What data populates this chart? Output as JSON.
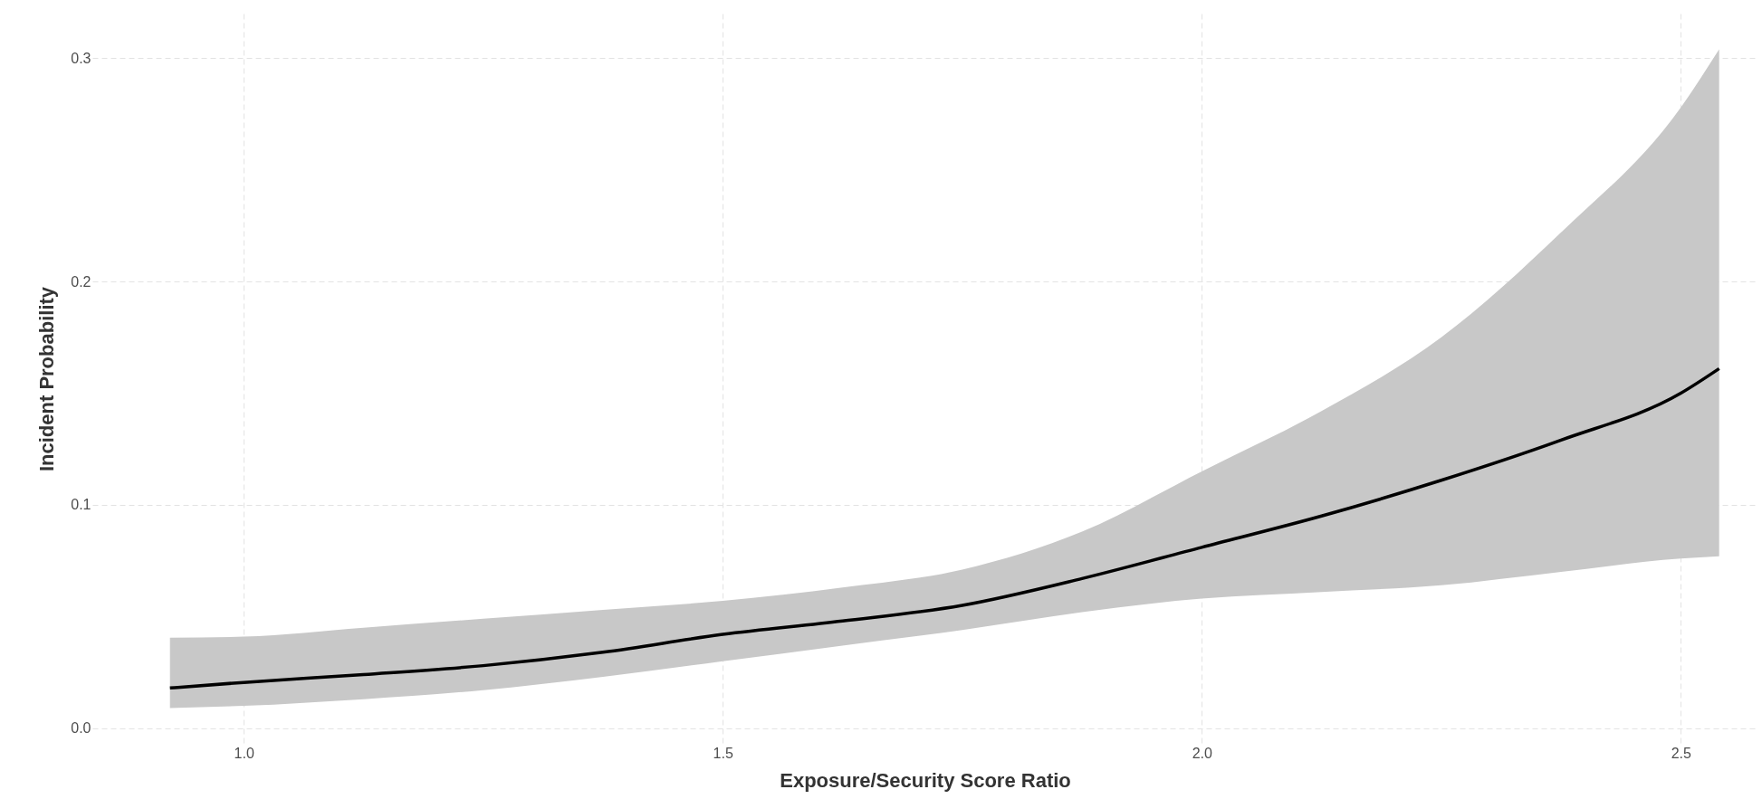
{
  "chart_data": {
    "type": "line",
    "xlabel": "Exposure/Security Score Ratio",
    "ylabel": "Incident Probability",
    "xlim": [
      0.842,
      2.58
    ],
    "ylim": [
      -0.007,
      0.32
    ],
    "xticks": [
      {
        "value": 1.0,
        "label": "1.0"
      },
      {
        "value": 1.5,
        "label": "1.5"
      },
      {
        "value": 2.0,
        "label": "2.0"
      },
      {
        "value": 2.5,
        "label": "2.5"
      }
    ],
    "yticks": [
      {
        "value": 0,
        "label": "0.0"
      },
      0.1,
      0.2,
      0.3
    ],
    "grid": true,
    "marker": "none",
    "line_style": "solid",
    "series": [
      {
        "color": "#000000",
        "x": [
          0.923,
          1.0,
          1.125,
          1.25,
          1.375,
          1.5,
          1.625,
          1.75,
          1.875,
          2.0,
          2.125,
          2.25,
          2.375,
          2.5,
          2.54
        ],
        "values": [
          0.018,
          0.0205,
          0.024,
          0.028,
          0.034,
          0.042,
          0.048,
          0.055,
          0.067,
          0.081,
          0.095,
          0.111,
          0.129,
          0.15,
          0.161
        ],
        "lower": [
          0.009,
          0.01,
          0.013,
          0.017,
          0.023,
          0.03,
          0.037,
          0.044,
          0.052,
          0.058,
          0.061,
          0.064,
          0.07,
          0.076,
          0.077
        ],
        "upper": [
          0.0405,
          0.041,
          0.045,
          0.049,
          0.053,
          0.057,
          0.063,
          0.071,
          0.088,
          0.115,
          0.142,
          0.175,
          0.222,
          0.278,
          0.304
        ]
      }
    ]
  }
}
